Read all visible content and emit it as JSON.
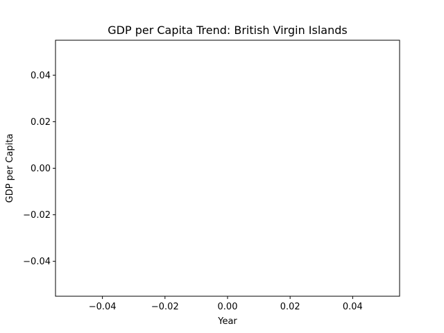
{
  "chart_data": {
    "type": "line",
    "title": "GDP per Capita Trend: British Virgin Islands",
    "xlabel": "Year",
    "ylabel": "GDP per Capita",
    "xlim": [
      -0.055,
      0.055
    ],
    "ylim": [
      -0.055,
      0.055
    ],
    "x_ticks": [
      -0.04,
      -0.02,
      0.0,
      0.02,
      0.04
    ],
    "x_tick_labels": [
      "−0.04",
      "−0.02",
      "0.00",
      "0.02",
      "0.04"
    ],
    "y_ticks": [
      -0.04,
      -0.02,
      0.0,
      0.02,
      0.04
    ],
    "y_tick_labels": [
      "−0.04",
      "−0.02",
      "0.00",
      "0.02",
      "0.04"
    ],
    "grid": false,
    "series": [
      {
        "x": [],
        "y": []
      }
    ]
  }
}
